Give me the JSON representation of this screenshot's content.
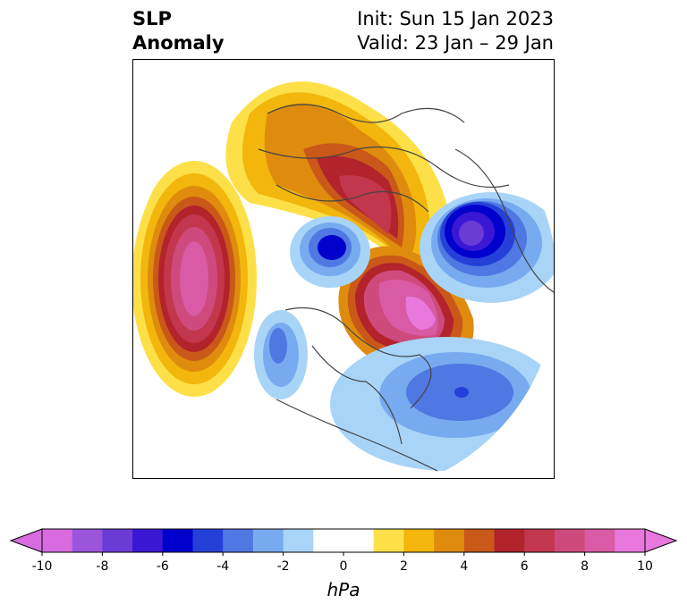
{
  "title": {
    "line1": "SLP",
    "line2": "Anomaly"
  },
  "info": {
    "init": "Init: Sun 15 Jan 2023",
    "valid": "Valid: 23 Jan – 29 Jan"
  },
  "colorbar": {
    "unit": "hPa",
    "ticks": [
      "-10",
      "-8",
      "-6",
      "-4",
      "-2",
      "0",
      "2",
      "4",
      "6",
      "8",
      "10"
    ],
    "colors": [
      "#d86be0",
      "#9b55dc",
      "#6b3bd6",
      "#3a17d2",
      "#0000cd",
      "#2540d8",
      "#4f78e2",
      "#78aaef",
      "#a8d4f8",
      "#ffffff",
      "#ffffff",
      "#fde047",
      "#f2b60c",
      "#df8c0e",
      "#c95819",
      "#b2232b",
      "#c2374d",
      "#cf4a7c",
      "#d95aa5",
      "#e978dc"
    ],
    "extend": "both",
    "min": -10,
    "max": 10
  }
}
